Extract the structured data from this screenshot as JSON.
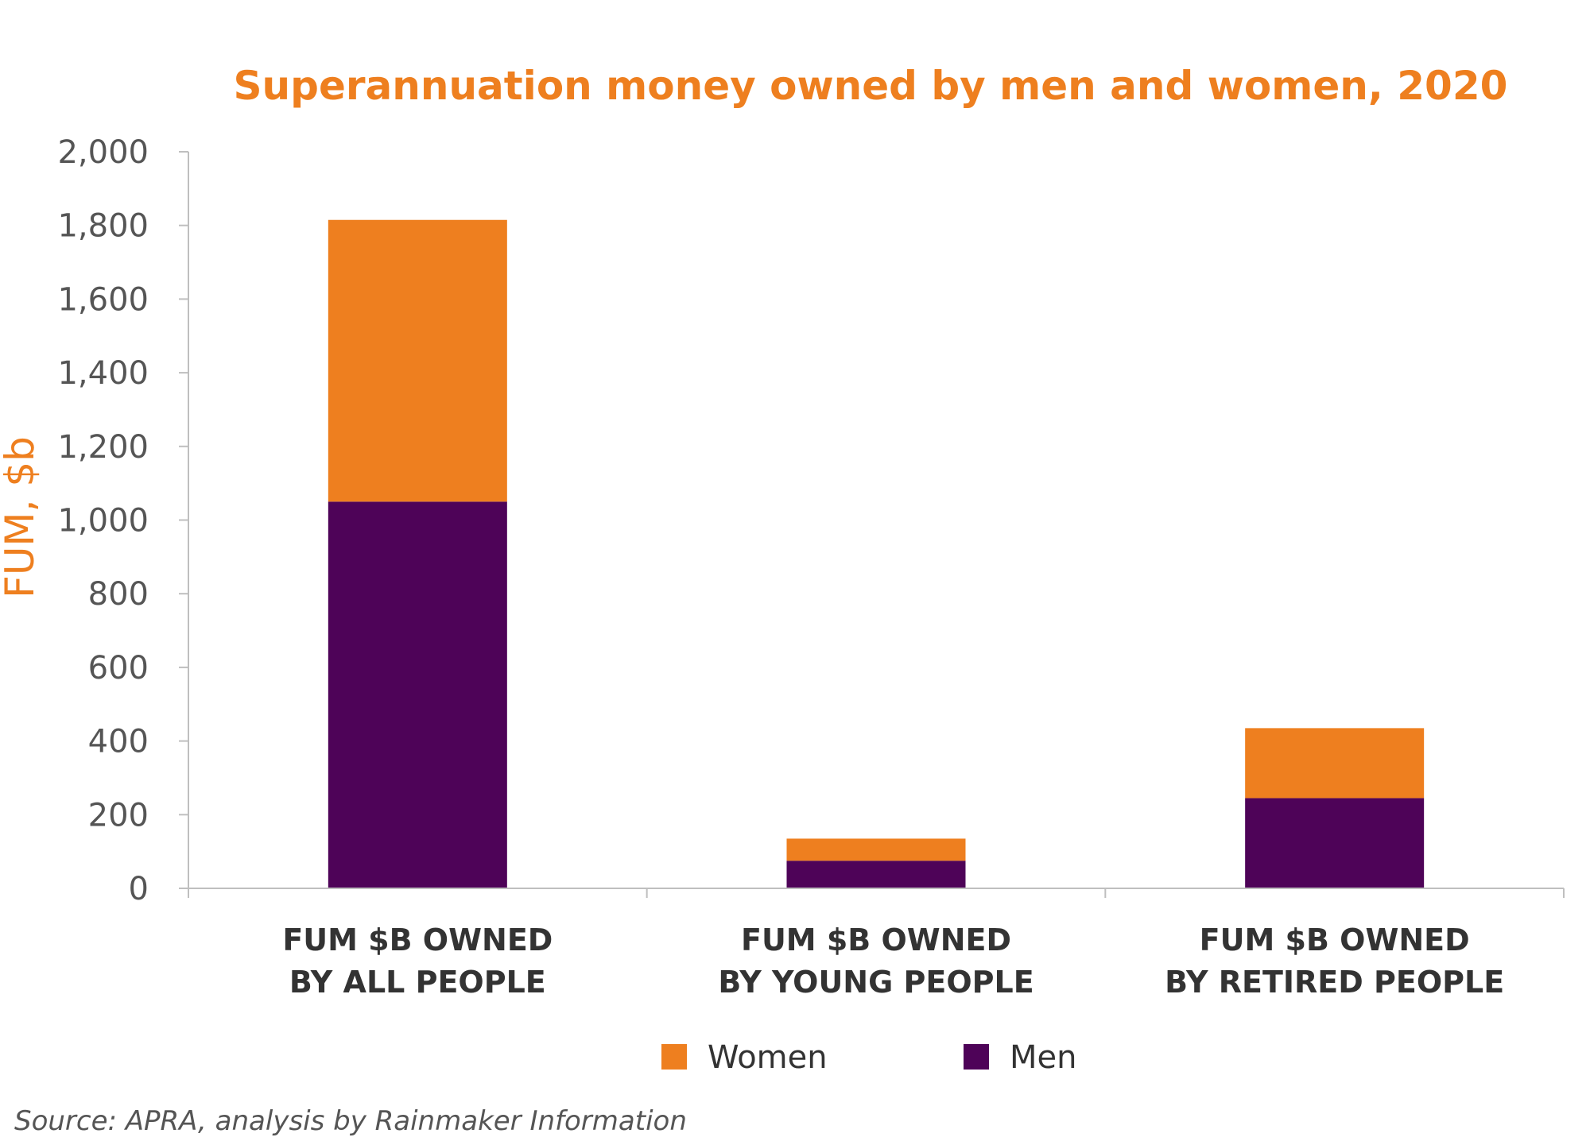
{
  "chart_data": {
    "type": "bar",
    "stacked": true,
    "title": "Superannuation money owned by men and women, 2020",
    "xlabel": "",
    "ylabel": "FUM, $b",
    "ylim": [
      0,
      2000
    ],
    "yticks": [
      0,
      200,
      400,
      600,
      800,
      1000,
      1200,
      1400,
      1600,
      1800,
      2000
    ],
    "ytick_labels": [
      "0",
      "200",
      "400",
      "600",
      "800",
      "1,000",
      "1,200",
      "1,400",
      "1,600",
      "1,800",
      "2,000"
    ],
    "categories": [
      [
        "FUM $B OWNED",
        "BY ALL PEOPLE"
      ],
      [
        "FUM $B  OWNED",
        "BY YOUNG PEOPLE"
      ],
      [
        "FUM $B  OWNED",
        "BY RETIRED PEOPLE"
      ]
    ],
    "series": [
      {
        "name": "Men",
        "color": "#4e0358",
        "values": [
          1050,
          75,
          245
        ]
      },
      {
        "name": "Women",
        "color": "#ee7f1f",
        "values": [
          765,
          60,
          190
        ]
      }
    ],
    "legend": {
      "position": "bottom",
      "order": [
        "Women",
        "Men"
      ]
    },
    "grid": false,
    "title_color": "#ee7f1f",
    "ylabel_color": "#ee7f1f",
    "axis_color": "#bfbfbf"
  },
  "source": "Source: APRA, analysis by Rainmaker Information"
}
